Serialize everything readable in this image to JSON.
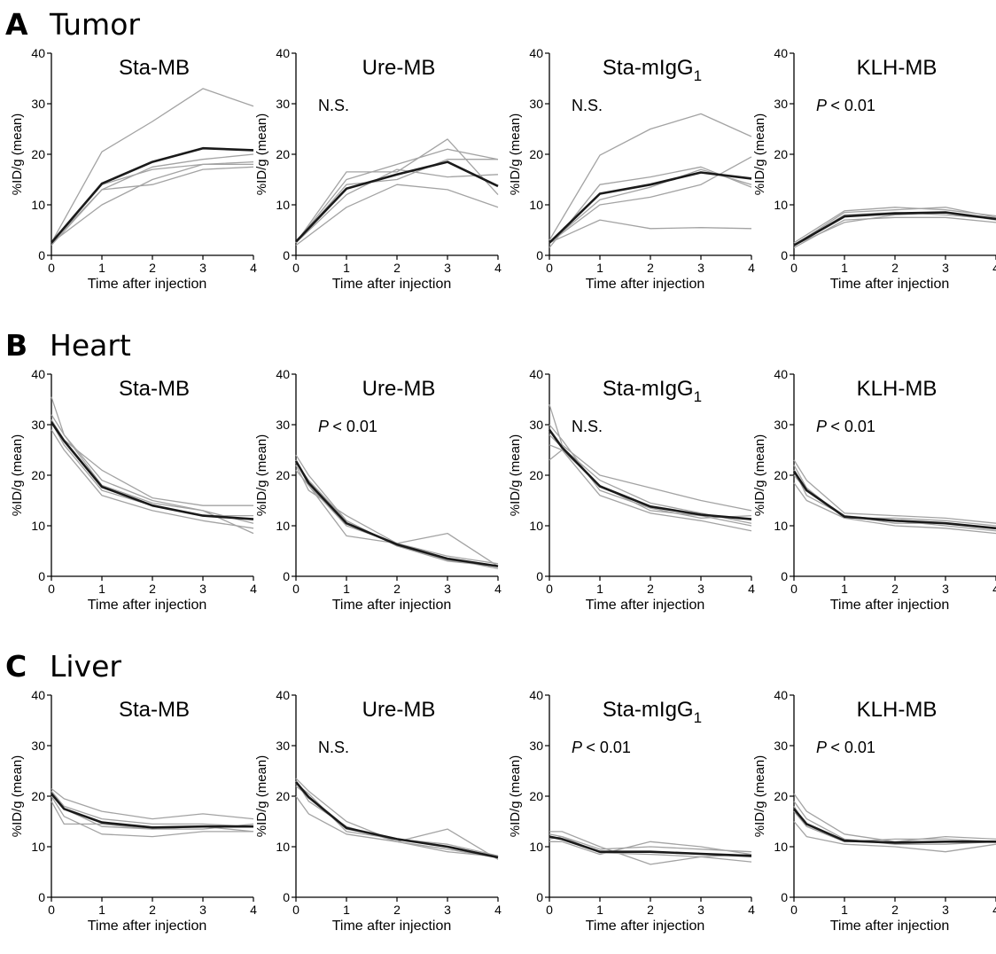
{
  "rows": [
    {
      "letter": "A",
      "name": "Tumor"
    },
    {
      "letter": "B",
      "name": "Heart"
    },
    {
      "letter": "C",
      "name": "Liver"
    }
  ],
  "common": {
    "ylabel": "%ID/g (mean)",
    "xlabel": "Time after injection",
    "yticks": [
      "0",
      "10",
      "20",
      "30",
      "40"
    ],
    "xticks": [
      "0",
      "1",
      "2",
      "3",
      "4"
    ]
  },
  "chart_data": [
    {
      "type": "line",
      "row": "Tumor",
      "title": "Sta-MB",
      "title_sub": "",
      "annotation": "",
      "annotation_p": false,
      "xlabel": "Time after injection",
      "ylabel": "%ID/g (mean)",
      "xlim": [
        0,
        4
      ],
      "ylim": [
        0,
        40
      ],
      "grid": false,
      "x": [
        0,
        1,
        2,
        3,
        4
      ],
      "individual": [
        [
          2.5,
          20.5,
          26.5,
          33,
          29.5
        ],
        [
          2,
          13,
          17.5,
          19,
          20
        ],
        [
          2.5,
          10,
          15,
          18,
          18.5
        ],
        [
          2.5,
          13,
          14,
          17,
          17.5
        ],
        [
          2.5,
          14,
          17,
          18,
          18
        ]
      ],
      "mean": [
        2.5,
        14.2,
        18.5,
        21.2,
        20.8
      ]
    },
    {
      "type": "line",
      "row": "Tumor",
      "title": "Ure-MB",
      "title_sub": "",
      "annotation": "N.S.",
      "annotation_p": false,
      "xlabel": "Time after injection",
      "ylabel": "%ID/g (mean)",
      "xlim": [
        0,
        4
      ],
      "ylim": [
        0,
        40
      ],
      "grid": false,
      "x": [
        0,
        1,
        2,
        3,
        4
      ],
      "individual": [
        [
          2.5,
          16.5,
          16.5,
          23,
          12
        ],
        [
          2,
          9.5,
          14,
          13,
          9.5
        ],
        [
          2.5,
          15,
          18,
          21,
          19
        ],
        [
          2.5,
          12,
          17,
          15.5,
          16
        ],
        [
          2.5,
          14,
          15,
          19,
          19
        ]
      ],
      "mean": [
        2.7,
        13.2,
        16,
        18.5,
        13.7
      ]
    },
    {
      "type": "line",
      "row": "Tumor",
      "title": "Sta-mIgG",
      "title_sub": "1",
      "annotation": "N.S.",
      "annotation_p": false,
      "xlabel": "Time after injection",
      "ylabel": "%ID/g (mean)",
      "xlim": [
        0,
        4
      ],
      "ylim": [
        0,
        40
      ],
      "grid": false,
      "x": [
        0,
        1,
        2,
        3,
        4
      ],
      "individual": [
        [
          3,
          19.8,
          25,
          28,
          23.5
        ],
        [
          2.5,
          7,
          5.3,
          5.5,
          5.3
        ],
        [
          2.5,
          10,
          11.5,
          14,
          19.5
        ],
        [
          1.5,
          14,
          15.5,
          17.5,
          13.5
        ],
        [
          2.5,
          11,
          13.5,
          17,
          14
        ]
      ],
      "mean": [
        2.5,
        12.2,
        14,
        16.4,
        15.2
      ]
    },
    {
      "type": "line",
      "row": "Tumor",
      "title": "KLH-MB",
      "title_sub": "",
      "annotation": "< 0.01",
      "annotation_p": true,
      "xlabel": "Time after injection",
      "ylabel": "%ID/g (mean)",
      "xlim": [
        0,
        4
      ],
      "ylim": [
        0,
        40
      ],
      "grid": false,
      "x": [
        0,
        1,
        2,
        3,
        4
      ],
      "individual": [
        [
          2,
          8.5,
          9,
          9.5,
          7.5
        ],
        [
          1.5,
          7,
          7.5,
          7.5,
          6.5
        ],
        [
          2,
          6.5,
          8,
          8.5,
          7
        ],
        [
          2,
          8,
          8.5,
          8,
          7.2
        ],
        [
          2.5,
          8.8,
          9.5,
          9,
          7.8
        ]
      ],
      "mean": [
        2,
        7.7,
        8.3,
        8.5,
        7.2
      ]
    },
    {
      "type": "line",
      "row": "Heart",
      "title": "Sta-MB",
      "title_sub": "",
      "annotation": "",
      "annotation_p": false,
      "xlabel": "Time after injection",
      "ylabel": "%ID/g (mean)",
      "xlim": [
        0,
        4
      ],
      "ylim": [
        0,
        40
      ],
      "grid": false,
      "x": [
        0,
        0.25,
        1,
        2,
        3,
        4
      ],
      "individual": [
        [
          35.5,
          28,
          18,
          14.5,
          13,
          8.5
        ],
        [
          31,
          27,
          21,
          15.5,
          14,
          14
        ],
        [
          29,
          25,
          16,
          13,
          11,
          9.5
        ],
        [
          30.5,
          26,
          17,
          14,
          12,
          12
        ],
        [
          32,
          28,
          19,
          15,
          13,
          10.5
        ]
      ],
      "mean": [
        30.5,
        26.8,
        17.7,
        14,
        12,
        11.3
      ]
    },
    {
      "type": "line",
      "row": "Heart",
      "title": "Ure-MB",
      "title_sub": "",
      "annotation": "< 0.01",
      "annotation_p": true,
      "xlabel": "Time after injection",
      "ylabel": "%ID/g (mean)",
      "xlim": [
        0,
        4
      ],
      "ylim": [
        0,
        40
      ],
      "grid": false,
      "x": [
        0,
        0.25,
        1,
        2,
        3,
        4
      ],
      "individual": [
        [
          23,
          18,
          8,
          6.5,
          8.5,
          2
        ],
        [
          22,
          17,
          12,
          6.5,
          3.5,
          1.5
        ],
        [
          24,
          20,
          11,
          6,
          3,
          2
        ],
        [
          21,
          18,
          10,
          6.5,
          4,
          2.5
        ],
        [
          22.5,
          19,
          11,
          6,
          3.2,
          2
        ]
      ],
      "mean": [
        22.8,
        18.5,
        10.5,
        6.3,
        3.5,
        2
      ]
    },
    {
      "type": "line",
      "row": "Heart",
      "title": "Sta-mIgG",
      "title_sub": "1",
      "annotation": "N.S.",
      "annotation_p": false,
      "xlabel": "Time after injection",
      "ylabel": "%ID/g (mean)",
      "xlim": [
        0,
        4
      ],
      "ylim": [
        0,
        40
      ],
      "grid": false,
      "x": [
        0,
        0.25,
        1,
        2,
        3,
        4
      ],
      "individual": [
        [
          34,
          26,
          20,
          17.5,
          15,
          13
        ],
        [
          23,
          25,
          16,
          12.5,
          11,
          9
        ],
        [
          26,
          25,
          18,
          13,
          12,
          10
        ],
        [
          30,
          27,
          17,
          13.5,
          11.5,
          12
        ],
        [
          28,
          25.5,
          19,
          14.5,
          12.5,
          10.5
        ]
      ],
      "mean": [
        29,
        25.5,
        17.8,
        13.8,
        12.2,
        11.3
      ]
    },
    {
      "type": "line",
      "row": "Heart",
      "title": "KLH-MB",
      "title_sub": "",
      "annotation": "< 0.01",
      "annotation_p": true,
      "xlabel": "Time after injection",
      "ylabel": "%ID/g (mean)",
      "xlim": [
        0,
        4
      ],
      "ylim": [
        0,
        40
      ],
      "grid": false,
      "x": [
        0,
        0.25,
        1,
        2,
        3,
        4
      ],
      "individual": [
        [
          23,
          19,
          12.5,
          12,
          11.5,
          10.5
        ],
        [
          18.5,
          15,
          11.5,
          10,
          9.5,
          8.5
        ],
        [
          20,
          17,
          12,
          11,
          10,
          9
        ],
        [
          22,
          17.5,
          11.5,
          11.5,
          11,
          10
        ],
        [
          21,
          16,
          12,
          10.5,
          10.5,
          9.5
        ]
      ],
      "mean": [
        20.8,
        17,
        11.8,
        11,
        10.5,
        9.5
      ]
    },
    {
      "type": "line",
      "row": "Liver",
      "title": "Sta-MB",
      "title_sub": "",
      "annotation": "",
      "annotation_p": false,
      "xlabel": "Time after injection",
      "ylabel": "%ID/g (mean)",
      "xlim": [
        0,
        4
      ],
      "ylim": [
        0,
        40
      ],
      "grid": false,
      "x": [
        0,
        0.25,
        1,
        2,
        3,
        4
      ],
      "individual": [
        [
          21.5,
          19.5,
          17,
          15.5,
          16.5,
          15.5
        ],
        [
          19,
          14.5,
          14.5,
          13.5,
          14,
          13
        ],
        [
          20,
          16,
          12.5,
          12,
          13,
          13
        ],
        [
          21,
          18,
          15.5,
          14.5,
          14.5,
          14
        ],
        [
          20.5,
          17.5,
          14,
          13.5,
          13.5,
          14.5
        ]
      ],
      "mean": [
        20.5,
        17.5,
        14.8,
        13.8,
        14,
        14
      ]
    },
    {
      "type": "line",
      "row": "Liver",
      "title": "Ure-MB",
      "title_sub": "",
      "annotation": "N.S.",
      "annotation_p": false,
      "xlabel": "Time after injection",
      "ylabel": "%ID/g (mean)",
      "xlim": [
        0,
        4
      ],
      "ylim": [
        0,
        40
      ],
      "grid": false,
      "x": [
        0,
        0.25,
        1,
        2,
        3,
        4
      ],
      "individual": [
        [
          23.5,
          21,
          15,
          11,
          13.5,
          7.5
        ],
        [
          20,
          16.5,
          12.5,
          11,
          9,
          8
        ],
        [
          22,
          20,
          13.5,
          11.5,
          10,
          8
        ],
        [
          23,
          19,
          14,
          11,
          9.5,
          7.8
        ],
        [
          22.5,
          20.5,
          13,
          11.5,
          10.5,
          8.2
        ]
      ],
      "mean": [
        22.8,
        19.8,
        13.7,
        11.5,
        10,
        7.9
      ]
    },
    {
      "type": "line",
      "row": "Liver",
      "title": "Sta-mIgG",
      "title_sub": "1",
      "annotation": "< 0.01",
      "annotation_p": true,
      "xlabel": "Time after injection",
      "ylabel": "%ID/g (mean)",
      "xlim": [
        0,
        4
      ],
      "ylim": [
        0,
        40
      ],
      "grid": false,
      "x": [
        0,
        0.25,
        1,
        2,
        3,
        4
      ],
      "individual": [
        [
          13,
          13,
          10,
          6.5,
          8,
          7
        ],
        [
          11,
          11,
          8.5,
          11,
          10,
          8.5
        ],
        [
          12.5,
          12,
          9.5,
          10,
          9.5,
          9
        ],
        [
          12,
          11.5,
          9,
          9,
          8.5,
          8
        ],
        [
          11.5,
          12,
          8.8,
          8.5,
          8,
          8.5
        ]
      ],
      "mean": [
        12,
        11.5,
        9,
        9,
        8.6,
        8.2
      ]
    },
    {
      "type": "line",
      "row": "Liver",
      "title": "KLH-MB",
      "title_sub": "",
      "annotation": "< 0.01",
      "annotation_p": true,
      "xlabel": "Time after injection",
      "ylabel": "%ID/g (mean)",
      "xlim": [
        0,
        4
      ],
      "ylim": [
        0,
        40
      ],
      "grid": false,
      "x": [
        0,
        0.25,
        1,
        2,
        3,
        4
      ],
      "individual": [
        [
          20.5,
          17,
          12.5,
          11,
          12,
          11.5
        ],
        [
          15,
          12,
          10.5,
          10,
          9,
          10.5
        ],
        [
          18,
          14,
          11,
          11,
          11,
          11
        ],
        [
          19,
          15.5,
          11.5,
          10.5,
          10.5,
          11
        ],
        [
          17,
          14,
          11,
          11.5,
          11.5,
          11
        ]
      ],
      "mean": [
        17.5,
        14.5,
        11.2,
        10.8,
        11,
        11
      ]
    }
  ]
}
